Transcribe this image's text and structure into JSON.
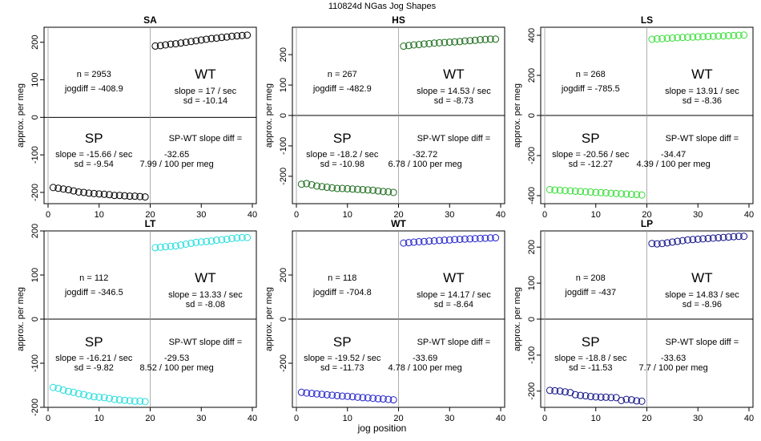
{
  "figure": {
    "title": "110824d    NGas Jog Shapes",
    "xlabel": "jog position",
    "ylabel": "approx. per meg"
  },
  "chart_data": [
    {
      "type": "scatter",
      "panel": "SA",
      "title": "SA",
      "color": "#000000",
      "xlim": [
        0,
        40
      ],
      "ylim": [
        -230,
        240
      ],
      "xticks": [
        "0",
        "10",
        "20",
        "30",
        "40"
      ],
      "yticks": [
        "-200",
        "-100",
        "0",
        "100",
        "200"
      ],
      "x": [
        1,
        2,
        3,
        4,
        5,
        6,
        7,
        8,
        9,
        10,
        11,
        12,
        13,
        14,
        15,
        16,
        17,
        18,
        19,
        21,
        22,
        23,
        24,
        25,
        26,
        27,
        28,
        29,
        30,
        31,
        32,
        33,
        34,
        35,
        36,
        37,
        38,
        39
      ],
      "y": [
        -187,
        -189,
        -191,
        -193,
        -196,
        -199,
        -200,
        -202,
        -203,
        -204,
        -205,
        -206,
        -208,
        -208,
        -209,
        -210,
        -210,
        -211,
        -212,
        190,
        191,
        193,
        195,
        196,
        198,
        200,
        202,
        204,
        206,
        208,
        210,
        211,
        213,
        214,
        216,
        217,
        218,
        219
      ],
      "annotations": {
        "n": "n = 2953",
        "jogdiff": "jogdiff = -408.9",
        "wt": "WT",
        "wt_slope": "slope = 17 / sec",
        "wt_sd": "sd = -10.14",
        "sp": "SP",
        "sp_slope": "slope = -15.66 / sec",
        "sp_sd": "sd = -9.54",
        "diff_label": "SP-WT slope diff =",
        "diff_value": "-32.65",
        "diff_permeg": "7.99 / 100 per meg"
      }
    },
    {
      "type": "scatter",
      "panel": "HS",
      "title": "HS",
      "color": "#1a6b1a",
      "xlim": [
        0,
        40
      ],
      "ylim": [
        -290,
        290
      ],
      "xticks": [
        "0",
        "10",
        "20",
        "30",
        "40"
      ],
      "yticks": [
        "-200",
        "-100",
        "0",
        "100",
        "200"
      ],
      "x": [
        1,
        2,
        3,
        4,
        5,
        6,
        7,
        8,
        9,
        10,
        11,
        12,
        13,
        14,
        15,
        16,
        17,
        18,
        19,
        21,
        22,
        23,
        24,
        25,
        26,
        27,
        28,
        29,
        30,
        31,
        32,
        33,
        34,
        35,
        36,
        37,
        38,
        39
      ],
      "y": [
        -226,
        -224,
        -228,
        -232,
        -234,
        -236,
        -238,
        -240,
        -240,
        -241,
        -242,
        -243,
        -244,
        -245,
        -246,
        -248,
        -250,
        -251,
        -253,
        228,
        230,
        232,
        233,
        235,
        236,
        238,
        239,
        240,
        241,
        242,
        243,
        245,
        246,
        247,
        249,
        250,
        251,
        251
      ],
      "annotations": {
        "n": "n = 267",
        "jogdiff": "jogdiff = -482.9",
        "wt": "WT",
        "wt_slope": "slope = 14.53 / sec",
        "wt_sd": "sd = -8.73",
        "sp": "SP",
        "sp_slope": "slope = -18.2 / sec",
        "sp_sd": "sd = -10.98",
        "diff_label": "SP-WT slope diff =",
        "diff_value": "-32.72",
        "diff_permeg": "6.78 / 100 per meg"
      }
    },
    {
      "type": "scatter",
      "panel": "LS",
      "title": "LS",
      "color": "#33dd33",
      "xlim": [
        0,
        40
      ],
      "ylim": [
        -440,
        440
      ],
      "xticks": [
        "0",
        "10",
        "20",
        "30",
        "40"
      ],
      "yticks": [
        "-400",
        "-200",
        "0",
        "200",
        "400"
      ],
      "x": [
        1,
        2,
        3,
        4,
        5,
        6,
        7,
        8,
        9,
        10,
        11,
        12,
        13,
        14,
        15,
        16,
        17,
        18,
        19,
        21,
        22,
        23,
        24,
        25,
        26,
        27,
        28,
        29,
        30,
        31,
        32,
        33,
        34,
        35,
        36,
        37,
        38,
        39
      ],
      "y": [
        -370,
        -372,
        -373,
        -375,
        -376,
        -378,
        -379,
        -381,
        -382,
        -384,
        -385,
        -386,
        -388,
        -389,
        -391,
        -392,
        -394,
        -395,
        -397,
        380,
        382,
        383,
        385,
        386,
        388,
        389,
        390,
        391,
        392,
        393,
        394,
        395,
        396,
        397,
        398,
        399,
        400,
        401
      ],
      "annotations": {
        "n": "n = 268",
        "jogdiff": "jogdiff = -785.5",
        "wt": "WT",
        "wt_slope": "slope = 13.91 / sec",
        "wt_sd": "sd = -8.36",
        "sp": "SP",
        "sp_slope": "slope = -20.56 / sec",
        "sp_sd": "sd = -12.27",
        "diff_label": "SP-WT slope diff =",
        "diff_value": "-34.47",
        "diff_permeg": "4.39 / 100 per meg"
      }
    },
    {
      "type": "scatter",
      "panel": "LT",
      "title": "LT",
      "color": "#22dddd",
      "xlim": [
        0,
        40
      ],
      "ylim": [
        -200,
        200
      ],
      "xticks": [
        "0",
        "10",
        "20",
        "30",
        "40"
      ],
      "yticks": [
        "-200",
        "-100",
        "0",
        "100",
        "200"
      ],
      "x": [
        1,
        2,
        3,
        4,
        5,
        6,
        7,
        8,
        9,
        10,
        11,
        12,
        13,
        14,
        15,
        16,
        17,
        18,
        19,
        21,
        22,
        23,
        24,
        25,
        26,
        27,
        28,
        29,
        30,
        31,
        32,
        33,
        34,
        35,
        36,
        37,
        38,
        39
      ],
      "y": [
        -155,
        -157,
        -161,
        -164,
        -166,
        -169,
        -171,
        -174,
        -176,
        -177,
        -178,
        -180,
        -182,
        -183,
        -184,
        -185,
        -186,
        -186,
        -187,
        162,
        163,
        164,
        165,
        166,
        168,
        170,
        172,
        174,
        175,
        176,
        177,
        179,
        180,
        181,
        183,
        184,
        185,
        185
      ],
      "annotations": {
        "n": "n = 112",
        "jogdiff": "jogdiff = -346.5",
        "wt": "WT",
        "wt_slope": "slope = 13.33 / sec",
        "wt_sd": "sd = -8.08",
        "sp": "SP",
        "sp_slope": "slope = -16.21 / sec",
        "sp_sd": "sd = -9.82",
        "diff_label": "SP-WT slope diff =",
        "diff_value": "-29.53",
        "diff_permeg": "8.52 / 100 per meg"
      }
    },
    {
      "type": "scatter",
      "panel": "WT",
      "title": "WT",
      "color": "#2222cc",
      "xlim": [
        0,
        40
      ],
      "ylim": [
        -400,
        400
      ],
      "xticks": [
        "0",
        "10",
        "20",
        "30",
        "40"
      ],
      "yticks": [
        "-200",
        "0",
        "200"
      ],
      "x": [
        1,
        2,
        3,
        4,
        5,
        6,
        7,
        8,
        9,
        10,
        11,
        12,
        13,
        14,
        15,
        16,
        17,
        18,
        19,
        21,
        22,
        23,
        24,
        25,
        26,
        27,
        28,
        29,
        30,
        31,
        32,
        33,
        34,
        35,
        36,
        37,
        38,
        39
      ],
      "y": [
        -332,
        -335,
        -337,
        -339,
        -341,
        -343,
        -345,
        -347,
        -349,
        -350,
        -352,
        -354,
        -356,
        -357,
        -359,
        -361,
        -362,
        -364,
        -366,
        345,
        347,
        349,
        351,
        352,
        354,
        355,
        357,
        358,
        359,
        361,
        362,
        363,
        364,
        365,
        366,
        367,
        368,
        369
      ],
      "annotations": {
        "n": "n = 118",
        "jogdiff": "jogdiff = -704.8",
        "wt": "WT",
        "wt_slope": "slope = 14.17 / sec",
        "wt_sd": "sd = -8.64",
        "sp": "SP",
        "sp_slope": "slope = -19.52 / sec",
        "sp_sd": "sd = -11.73",
        "diff_label": "SP-WT slope diff =",
        "diff_value": "-33.69",
        "diff_permeg": "4.78 / 100 per meg"
      }
    },
    {
      "type": "scatter",
      "panel": "LP",
      "title": "LP",
      "color": "#111188",
      "xlim": [
        0,
        40
      ],
      "ylim": [
        -245,
        245
      ],
      "xticks": [
        "0",
        "10",
        "20",
        "30",
        "40"
      ],
      "yticks": [
        "-200",
        "-100",
        "0",
        "100",
        "200"
      ],
      "x": [
        1,
        2,
        3,
        4,
        5,
        6,
        7,
        8,
        9,
        10,
        11,
        12,
        13,
        14,
        15,
        16,
        17,
        18,
        19,
        21,
        22,
        23,
        24,
        25,
        26,
        27,
        28,
        29,
        30,
        31,
        32,
        33,
        34,
        35,
        36,
        37,
        38,
        39
      ],
      "y": [
        -198,
        -199,
        -200,
        -202,
        -204,
        -210,
        -212,
        -213,
        -215,
        -216,
        -217,
        -217,
        -218,
        -218,
        -226,
        -223,
        -224,
        -227,
        -228,
        210,
        209,
        210,
        212,
        214,
        216,
        218,
        220,
        221,
        222,
        223,
        224,
        225,
        226,
        227,
        228,
        229,
        230,
        230
      ],
      "annotations": {
        "n": "n = 208",
        "jogdiff": "jogdiff = -437",
        "wt": "WT",
        "wt_slope": "slope = 14.83 / sec",
        "wt_sd": "sd = -8.96",
        "sp": "SP",
        "sp_slope": "slope = -18.8 / sec",
        "sp_sd": "sd = -11.53",
        "diff_label": "SP-WT slope diff =",
        "diff_value": "-33.63",
        "diff_permeg": "7.7 / 100 per meg"
      }
    }
  ]
}
